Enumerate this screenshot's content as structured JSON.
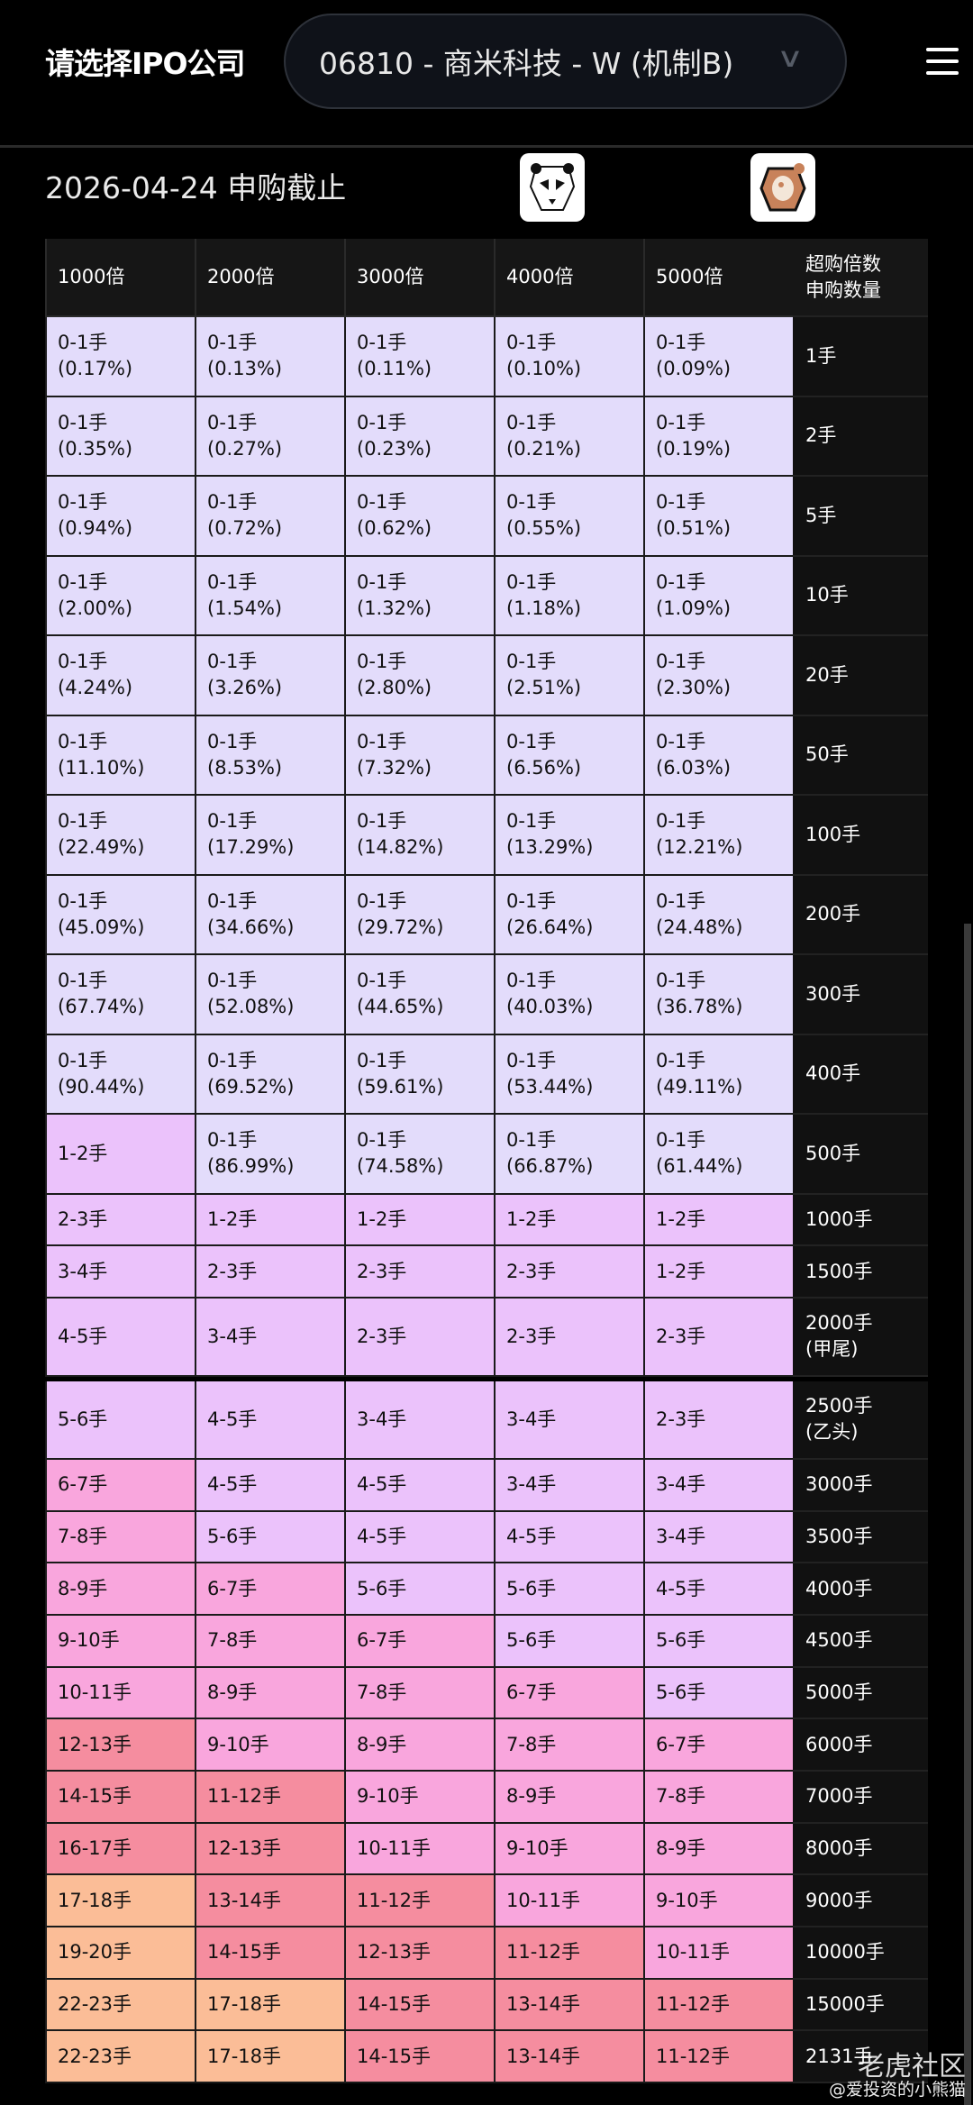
{
  "header": {
    "title": "请选择IPO公司",
    "selected_ipo": "06810 - 商米科技 - W (机制B)"
  },
  "subheader": {
    "deadline": "2026-04-24 申购截止"
  },
  "colors": {
    "zero_one": "#e3dcfb",
    "1_5": "#ebc2fb",
    "6_10": "#f9a6dd",
    "11_16": "#f58d9f",
    "17_plus": "#fbbd97"
  },
  "table": {
    "headers": [
      "1000倍",
      "2000倍",
      "3000倍",
      "4000倍",
      "5000倍"
    ],
    "label_header": [
      "超购倍数",
      "申购数量"
    ],
    "rows": [
      {
        "label": "1手",
        "cells": [
          [
            "0-1手",
            "(0.17%)"
          ],
          [
            "0-1手",
            "(0.13%)"
          ],
          [
            "0-1手",
            "(0.11%)"
          ],
          [
            "0-1手",
            "(0.10%)"
          ],
          [
            "0-1手",
            "(0.09%)"
          ]
        ]
      },
      {
        "label": "2手",
        "cells": [
          [
            "0-1手",
            "(0.35%)"
          ],
          [
            "0-1手",
            "(0.27%)"
          ],
          [
            "0-1手",
            "(0.23%)"
          ],
          [
            "0-1手",
            "(0.21%)"
          ],
          [
            "0-1手",
            "(0.19%)"
          ]
        ]
      },
      {
        "label": "5手",
        "cells": [
          [
            "0-1手",
            "(0.94%)"
          ],
          [
            "0-1手",
            "(0.72%)"
          ],
          [
            "0-1手",
            "(0.62%)"
          ],
          [
            "0-1手",
            "(0.55%)"
          ],
          [
            "0-1手",
            "(0.51%)"
          ]
        ]
      },
      {
        "label": "10手",
        "cells": [
          [
            "0-1手",
            "(2.00%)"
          ],
          [
            "0-1手",
            "(1.54%)"
          ],
          [
            "0-1手",
            "(1.32%)"
          ],
          [
            "0-1手",
            "(1.18%)"
          ],
          [
            "0-1手",
            "(1.09%)"
          ]
        ]
      },
      {
        "label": "20手",
        "cells": [
          [
            "0-1手",
            "(4.24%)"
          ],
          [
            "0-1手",
            "(3.26%)"
          ],
          [
            "0-1手",
            "(2.80%)"
          ],
          [
            "0-1手",
            "(2.51%)"
          ],
          [
            "0-1手",
            "(2.30%)"
          ]
        ]
      },
      {
        "label": "50手",
        "cells": [
          [
            "0-1手",
            "(11.10%)"
          ],
          [
            "0-1手",
            "(8.53%)"
          ],
          [
            "0-1手",
            "(7.32%)"
          ],
          [
            "0-1手",
            "(6.56%)"
          ],
          [
            "0-1手",
            "(6.03%)"
          ]
        ]
      },
      {
        "label": "100手",
        "cells": [
          [
            "0-1手",
            "(22.49%)"
          ],
          [
            "0-1手",
            "(17.29%)"
          ],
          [
            "0-1手",
            "(14.82%)"
          ],
          [
            "0-1手",
            "(13.29%)"
          ],
          [
            "0-1手",
            "(12.21%)"
          ]
        ]
      },
      {
        "label": "200手",
        "cells": [
          [
            "0-1手",
            "(45.09%)"
          ],
          [
            "0-1手",
            "(34.66%)"
          ],
          [
            "0-1手",
            "(29.72%)"
          ],
          [
            "0-1手",
            "(26.64%)"
          ],
          [
            "0-1手",
            "(24.48%)"
          ]
        ]
      },
      {
        "label": "300手",
        "cells": [
          [
            "0-1手",
            "(67.74%)"
          ],
          [
            "0-1手",
            "(52.08%)"
          ],
          [
            "0-1手",
            "(44.65%)"
          ],
          [
            "0-1手",
            "(40.03%)"
          ],
          [
            "0-1手",
            "(36.78%)"
          ]
        ]
      },
      {
        "label": "400手",
        "cells": [
          [
            "0-1手",
            "(90.44%)"
          ],
          [
            "0-1手",
            "(69.52%)"
          ],
          [
            "0-1手",
            "(59.61%)"
          ],
          [
            "0-1手",
            "(53.44%)"
          ],
          [
            "0-1手",
            "(49.11%)"
          ]
        ]
      },
      {
        "label": "500手",
        "cells": [
          [
            "1-2手"
          ],
          [
            "0-1手",
            "(86.99%)"
          ],
          [
            "0-1手",
            "(74.58%)"
          ],
          [
            "0-1手",
            "(66.87%)"
          ],
          [
            "0-1手",
            "(61.44%)"
          ]
        ]
      },
      {
        "label": "1000手",
        "cells": [
          [
            "2-3手"
          ],
          [
            "1-2手"
          ],
          [
            "1-2手"
          ],
          [
            "1-2手"
          ],
          [
            "1-2手"
          ]
        ]
      },
      {
        "label": "1500手",
        "cells": [
          [
            "3-4手"
          ],
          [
            "2-3手"
          ],
          [
            "2-3手"
          ],
          [
            "2-3手"
          ],
          [
            "1-2手"
          ]
        ]
      },
      {
        "label": "2000手(甲尾)",
        "cells": [
          [
            "4-5手"
          ],
          [
            "3-4手"
          ],
          [
            "2-3手"
          ],
          [
            "2-3手"
          ],
          [
            "2-3手"
          ]
        ]
      },
      {
        "label": "2500手(乙头)",
        "cells": [
          [
            "5-6手"
          ],
          [
            "4-5手"
          ],
          [
            "3-4手"
          ],
          [
            "3-4手"
          ],
          [
            "2-3手"
          ]
        ]
      },
      {
        "label": "3000手",
        "cells": [
          [
            "6-7手"
          ],
          [
            "4-5手"
          ],
          [
            "4-5手"
          ],
          [
            "3-4手"
          ],
          [
            "3-4手"
          ]
        ]
      },
      {
        "label": "3500手",
        "cells": [
          [
            "7-8手"
          ],
          [
            "5-6手"
          ],
          [
            "4-5手"
          ],
          [
            "4-5手"
          ],
          [
            "3-4手"
          ]
        ]
      },
      {
        "label": "4000手",
        "cells": [
          [
            "8-9手"
          ],
          [
            "6-7手"
          ],
          [
            "5-6手"
          ],
          [
            "5-6手"
          ],
          [
            "4-5手"
          ]
        ]
      },
      {
        "label": "4500手",
        "cells": [
          [
            "9-10手"
          ],
          [
            "7-8手"
          ],
          [
            "6-7手"
          ],
          [
            "5-6手"
          ],
          [
            "5-6手"
          ]
        ]
      },
      {
        "label": "5000手",
        "cells": [
          [
            "10-11手"
          ],
          [
            "8-9手"
          ],
          [
            "7-8手"
          ],
          [
            "6-7手"
          ],
          [
            "5-6手"
          ]
        ]
      },
      {
        "label": "6000手",
        "cells": [
          [
            "12-13手"
          ],
          [
            "9-10手"
          ],
          [
            "8-9手"
          ],
          [
            "7-8手"
          ],
          [
            "6-7手"
          ]
        ]
      },
      {
        "label": "7000手",
        "cells": [
          [
            "14-15手"
          ],
          [
            "11-12手"
          ],
          [
            "9-10手"
          ],
          [
            "8-9手"
          ],
          [
            "7-8手"
          ]
        ]
      },
      {
        "label": "8000手",
        "cells": [
          [
            "16-17手"
          ],
          [
            "12-13手"
          ],
          [
            "10-11手"
          ],
          [
            "9-10手"
          ],
          [
            "8-9手"
          ]
        ]
      },
      {
        "label": "9000手",
        "cells": [
          [
            "17-18手"
          ],
          [
            "13-14手"
          ],
          [
            "11-12手"
          ],
          [
            "10-11手"
          ],
          [
            "9-10手"
          ]
        ]
      },
      {
        "label": "10000手",
        "cells": [
          [
            "19-20手"
          ],
          [
            "14-15手"
          ],
          [
            "12-13手"
          ],
          [
            "11-12手"
          ],
          [
            "10-11手"
          ]
        ]
      },
      {
        "label": "15000手",
        "cells": [
          [
            "22-23手"
          ],
          [
            "17-18手"
          ],
          [
            "14-15手"
          ],
          [
            "13-14手"
          ],
          [
            "11-12手"
          ]
        ]
      },
      {
        "label": "2131手",
        "cells": [
          [
            "22-23手"
          ],
          [
            "17-18手"
          ],
          [
            "14-15手"
          ],
          [
            "13-14手"
          ],
          [
            "11-12手"
          ]
        ]
      }
    ]
  },
  "watermark": {
    "brand": "老虎社区",
    "author": "@爱投资的小熊猫"
  }
}
